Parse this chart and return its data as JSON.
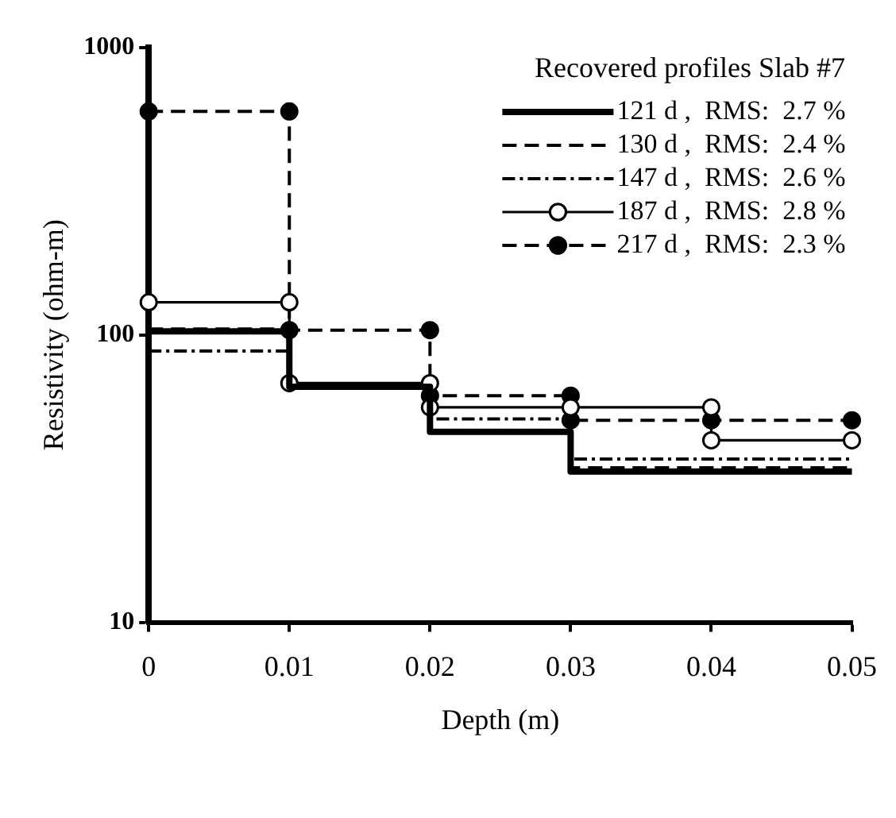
{
  "chart_data": {
    "type": "line",
    "xlabel": "Depth (m)",
    "ylabel": "Resistivity (ohm-m)",
    "legend_title": "Recovered profiles Slab #7",
    "xlim": [
      0,
      0.05
    ],
    "xticks": [
      0,
      0.01,
      0.02,
      0.03,
      0.04,
      0.05
    ],
    "ylim": [
      10,
      1000
    ],
    "yticks": [
      10,
      100,
      1000
    ],
    "log": "y",
    "grid": false,
    "legend": "top right",
    "series": [
      {
        "name": "121 d ,  RMS:  2.7 %",
        "color": "#000000",
        "line_style": "solid",
        "marker": "none",
        "x": [
          0,
          0.01,
          0.01,
          0.02,
          0.02,
          0.03,
          0.03,
          0.05
        ],
        "values": [
          103,
          103,
          66,
          66,
          46,
          46,
          33.5,
          33.5
        ]
      },
      {
        "name": "130 d ,  RMS:  2.4 %",
        "color": "#000000",
        "line_style": "dashed",
        "marker": "none",
        "x": [
          0,
          0.01,
          0.01,
          0.02,
          0.02,
          0.03,
          0.03,
          0.05
        ],
        "values": [
          105,
          105,
          66,
          66,
          46,
          46,
          34.5,
          34.5
        ]
      },
      {
        "name": "147 d ,  RMS:  2.6 %",
        "color": "#000000",
        "line_style": "dotted",
        "marker": "none",
        "x": [
          0,
          0.01,
          0.01,
          0.02,
          0.02,
          0.03,
          0.03,
          0.05
        ],
        "values": [
          88,
          88,
          66,
          66,
          51,
          51,
          37,
          37
        ]
      },
      {
        "name": "187 d ,  RMS:  2.8 %",
        "color": "#000000",
        "line_style": "solid",
        "marker": "circle",
        "x": [
          0,
          0.01,
          0.01,
          0.02,
          0.02,
          0.03,
          0.04,
          0.04,
          0.05
        ],
        "values": [
          130,
          130,
          68,
          68,
          56,
          56,
          56,
          43,
          43
        ]
      },
      {
        "name": "217 d ,  RMS:  2.3 %",
        "color": "#000000",
        "line_style": "dashed",
        "marker": "circle",
        "x": [
          0,
          0.01,
          0.01,
          0.02,
          0.02,
          0.03,
          0.03,
          0.04,
          0.05
        ],
        "values": [
          600,
          600,
          104,
          104,
          61.5,
          61.5,
          50.5,
          50.5,
          50.5
        ]
      }
    ]
  }
}
